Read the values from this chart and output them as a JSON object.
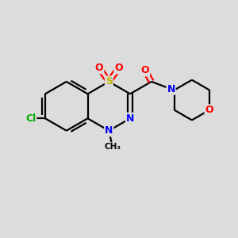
{
  "background_color": "#dcdcdc",
  "bond_color": "#000000",
  "atom_colors": {
    "S": "#b8b800",
    "O": "#ff0000",
    "N": "#0000ff",
    "Cl": "#00aa00",
    "C": "#000000"
  },
  "figsize": [
    3.0,
    3.0
  ],
  "dpi": 100,
  "xlim": [
    0,
    10
  ],
  "ylim": [
    0,
    10
  ]
}
